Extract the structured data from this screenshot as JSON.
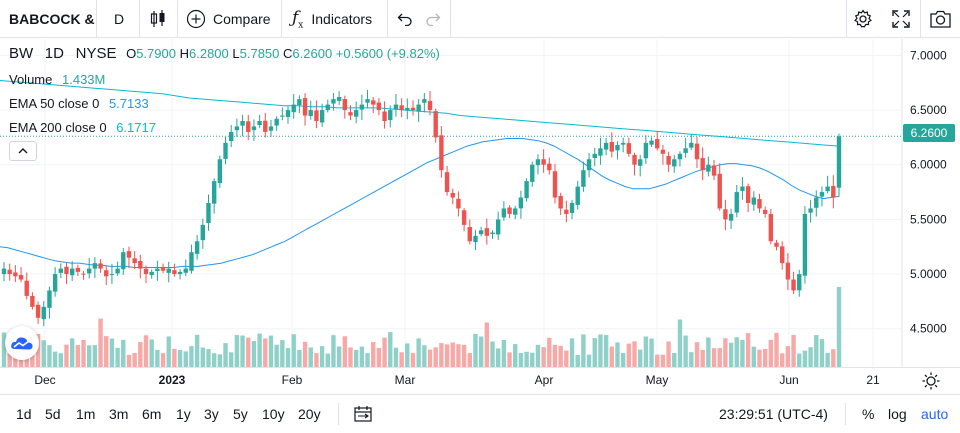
{
  "toolbar": {
    "symbol": "BABCOCK &",
    "interval": "D",
    "compare_label": "Compare",
    "indicators_label": "Indicators"
  },
  "legend": {
    "ticker": "BW",
    "interval": "1D",
    "exchange": "NYSE",
    "o_label": "O",
    "o_value": "5.7900",
    "h_label": "H",
    "h_value": "6.2800",
    "l_label": "L",
    "l_value": "5.7850",
    "c_label": "C",
    "c_value": "6.2600",
    "change": "+0.5600 (+9.82%)",
    "volume_label": "Volume",
    "volume_value": "1.433M",
    "ema50_label": "EMA 50 close 0",
    "ema50_value": "5.7133",
    "ema200_label": "EMA 200 close 0",
    "ema200_value": "6.1717"
  },
  "price_axis": {
    "ticks": [
      "7.0000",
      "6.5000",
      "6.0000",
      "5.5000",
      "5.0000",
      "4.5000"
    ],
    "current_price_tag": "6.2600"
  },
  "time_axis": {
    "labels": [
      "Dec",
      "2023",
      "Feb",
      "Mar",
      "Apr",
      "May",
      "Jun",
      "21"
    ]
  },
  "bottombar": {
    "ranges": [
      "1d",
      "5d",
      "1m",
      "3m",
      "6m",
      "1y",
      "3y",
      "5y",
      "10y",
      "20y"
    ],
    "clock": "23:29:51 (UTC-4)",
    "percent": "%",
    "log": "log",
    "auto": "auto"
  },
  "colors": {
    "up": "#26a69a",
    "down": "#ef5350",
    "ema50": "#2196f3",
    "ema200": "#00bcd4",
    "vol_up": "#8fd1c9",
    "vol_down": "#f7a9a7",
    "accent": "#2962ff"
  },
  "chart_data": {
    "type": "candlestick",
    "y_range": [
      4.15,
      7.15
    ],
    "closes": [
      5.05,
      5.0,
      4.98,
      4.95,
      4.8,
      4.7,
      4.6,
      4.7,
      4.85,
      5.0,
      5.05,
      5.0,
      5.05,
      5.02,
      5.0,
      5.05,
      5.1,
      5.05,
      4.98,
      5.0,
      5.05,
      5.2,
      5.15,
      5.1,
      5.05,
      5.0,
      5.02,
      5.05,
      5.03,
      5.05,
      5.0,
      5.02,
      5.05,
      5.2,
      5.3,
      5.45,
      5.65,
      5.85,
      6.05,
      6.2,
      6.3,
      6.35,
      6.4,
      6.3,
      6.35,
      6.4,
      6.3,
      6.35,
      6.42,
      6.45,
      6.5,
      6.55,
      6.6,
      6.45,
      6.5,
      6.4,
      6.5,
      6.55,
      6.6,
      6.62,
      6.5,
      6.45,
      6.5,
      6.55,
      6.6,
      6.55,
      6.5,
      6.4,
      6.5,
      6.55,
      6.5,
      6.52,
      6.5,
      6.55,
      6.6,
      6.5,
      6.25,
      5.95,
      5.75,
      5.7,
      5.6,
      5.45,
      5.3,
      5.35,
      5.4,
      5.35,
      5.38,
      5.5,
      5.6,
      5.55,
      5.6,
      5.7,
      5.85,
      6.0,
      6.05,
      6.0,
      5.95,
      5.7,
      5.6,
      5.55,
      5.65,
      5.8,
      5.95,
      6.05,
      6.1,
      6.15,
      6.2,
      6.12,
      6.18,
      6.2,
      6.1,
      6.0,
      6.05,
      6.2,
      6.22,
      6.15,
      6.1,
      6.0,
      6.05,
      6.1,
      6.15,
      6.2,
      6.05,
      5.95,
      6.0,
      5.9,
      5.6,
      5.5,
      5.55,
      5.75,
      5.8,
      5.65,
      5.7,
      5.6,
      5.55,
      5.3,
      5.25,
      5.1,
      4.95,
      4.85,
      5.0,
      5.55,
      5.6,
      5.7,
      5.75,
      5.8,
      5.7,
      6.26
    ],
    "ema50": [
      5.25,
      5.24,
      5.22,
      5.2,
      5.18,
      5.16,
      5.14,
      5.12,
      5.11,
      5.1,
      5.1,
      5.09,
      5.08,
      5.08,
      5.07,
      5.07,
      5.07,
      5.06,
      5.06,
      5.06,
      5.06,
      5.06,
      5.06,
      5.07,
      5.07,
      5.07,
      5.08,
      5.09,
      5.1,
      5.12,
      5.14,
      5.16,
      5.18,
      5.21,
      5.24,
      5.27,
      5.3,
      5.34,
      5.38,
      5.42,
      5.46,
      5.5,
      5.54,
      5.58,
      5.62,
      5.66,
      5.7,
      5.74,
      5.78,
      5.82,
      5.86,
      5.9,
      5.94,
      5.98,
      6.02,
      6.05,
      6.08,
      6.11,
      6.14,
      6.17,
      6.19,
      6.21,
      6.22,
      6.23,
      6.24,
      6.24,
      6.24,
      6.23,
      6.22,
      6.2,
      6.17,
      6.13,
      6.09,
      6.05,
      6.0,
      5.95,
      5.9,
      5.86,
      5.83,
      5.8,
      5.78,
      5.78,
      5.78,
      5.8,
      5.82,
      5.85,
      5.88,
      5.91,
      5.94,
      5.96,
      5.98,
      6.0,
      6.01,
      6.01,
      6.0,
      5.99,
      5.97,
      5.94,
      5.9,
      5.86,
      5.81,
      5.77,
      5.74,
      5.71,
      5.69,
      5.7,
      5.71
    ],
    "ema200": [
      6.77,
      6.76,
      6.75,
      6.74,
      6.73,
      6.72,
      6.71,
      6.7,
      6.69,
      6.68,
      6.67,
      6.66,
      6.65,
      6.63,
      6.61,
      6.6,
      6.59,
      6.58,
      6.57,
      6.56,
      6.55,
      6.54,
      6.54,
      6.53,
      6.53,
      6.52,
      6.52,
      6.52,
      6.52,
      6.51,
      6.5,
      6.49,
      6.48,
      6.47,
      6.45,
      6.44,
      6.43,
      6.42,
      6.41,
      6.4,
      6.39,
      6.38,
      6.37,
      6.36,
      6.35,
      6.34,
      6.33,
      6.32,
      6.31,
      6.3,
      6.29,
      6.28,
      6.27,
      6.26,
      6.25,
      6.24,
      6.23,
      6.22,
      6.21,
      6.2,
      6.19,
      6.18,
      6.17
    ]
  }
}
